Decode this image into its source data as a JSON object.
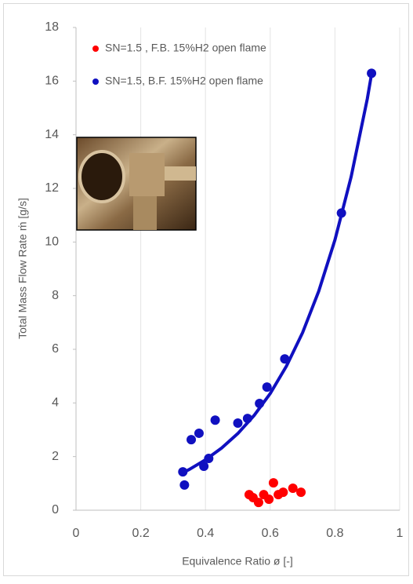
{
  "chart_data": {
    "type": "scatter",
    "x_label": "Equivalence Ratio ø [-]",
    "y_label": "Total Mass Flow Rate ṁ [g/s]",
    "xlim": [
      0,
      1
    ],
    "xticks": [
      0,
      0.2,
      0.4,
      0.6,
      0.8,
      1
    ],
    "ylim": [
      0,
      18
    ],
    "yticks": [
      0,
      2,
      4,
      6,
      8,
      10,
      12,
      14,
      16,
      18
    ],
    "grid": "x",
    "legend": "upper left",
    "series": [
      {
        "name": "SN=1.5 , F.B. 15%H2 open flame",
        "color": "#ff0000",
        "x": [
          0.535,
          0.547,
          0.564,
          0.58,
          0.596,
          0.61,
          0.625,
          0.64,
          0.67,
          0.695
        ],
        "values": [
          0.58,
          0.47,
          0.29,
          0.58,
          0.41,
          1.02,
          0.58,
          0.67,
          0.82,
          0.67
        ]
      },
      {
        "name": "SN=1.5, B.F. 15%H2 open flame",
        "color": "#1010c0",
        "x": [
          0.33,
          0.335,
          0.356,
          0.38,
          0.395,
          0.41,
          0.43,
          0.5,
          0.53,
          0.567,
          0.59,
          0.645,
          0.82,
          0.913
        ],
        "values": [
          1.43,
          0.94,
          2.63,
          2.87,
          1.64,
          1.93,
          3.36,
          3.25,
          3.42,
          3.98,
          4.59,
          5.64,
          11.08,
          16.29
        ]
      }
    ],
    "trendline": {
      "color": "#1010c0",
      "x": [
        0.33,
        0.35,
        0.4,
        0.45,
        0.5,
        0.55,
        0.6,
        0.65,
        0.7,
        0.75,
        0.8,
        0.85,
        0.9,
        0.915
      ],
      "values": [
        1.4,
        1.52,
        1.88,
        2.32,
        2.86,
        3.53,
        4.35,
        5.37,
        6.62,
        8.17,
        10.08,
        12.43,
        15.34,
        16.4
      ]
    }
  }
}
